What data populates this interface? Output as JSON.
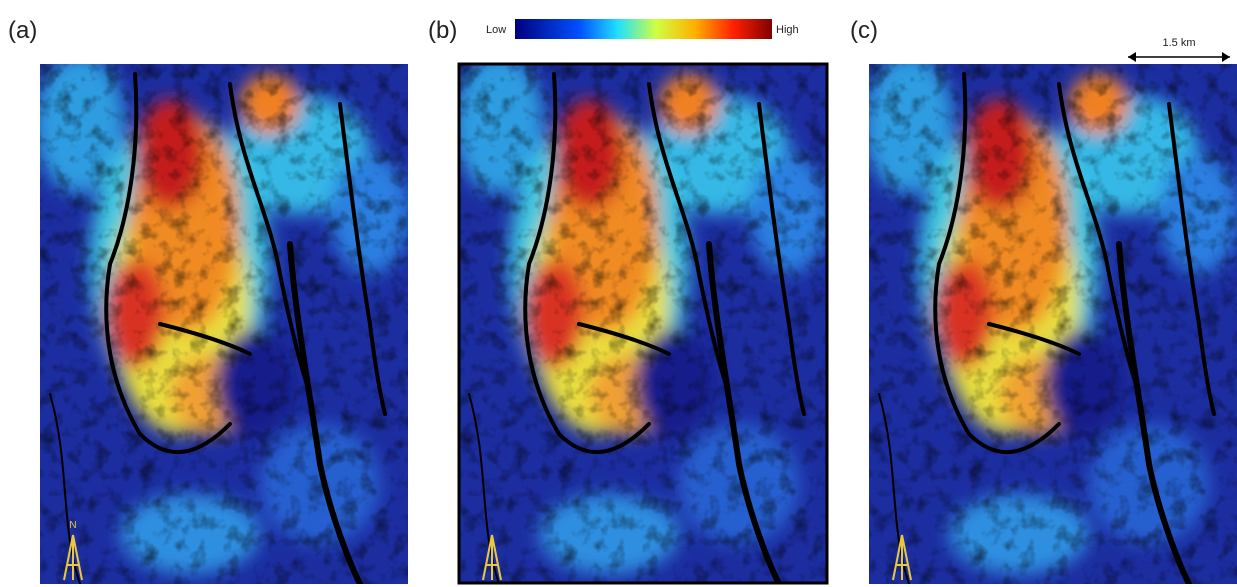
{
  "panels": [
    {
      "label": "(a)"
    },
    {
      "label": "(b)"
    },
    {
      "label": "(c)"
    }
  ],
  "colorbar": {
    "low": "Low",
    "high": "High"
  },
  "scale_bar": {
    "label": "1.5 km"
  },
  "north_arrow": {
    "label": "N"
  }
}
